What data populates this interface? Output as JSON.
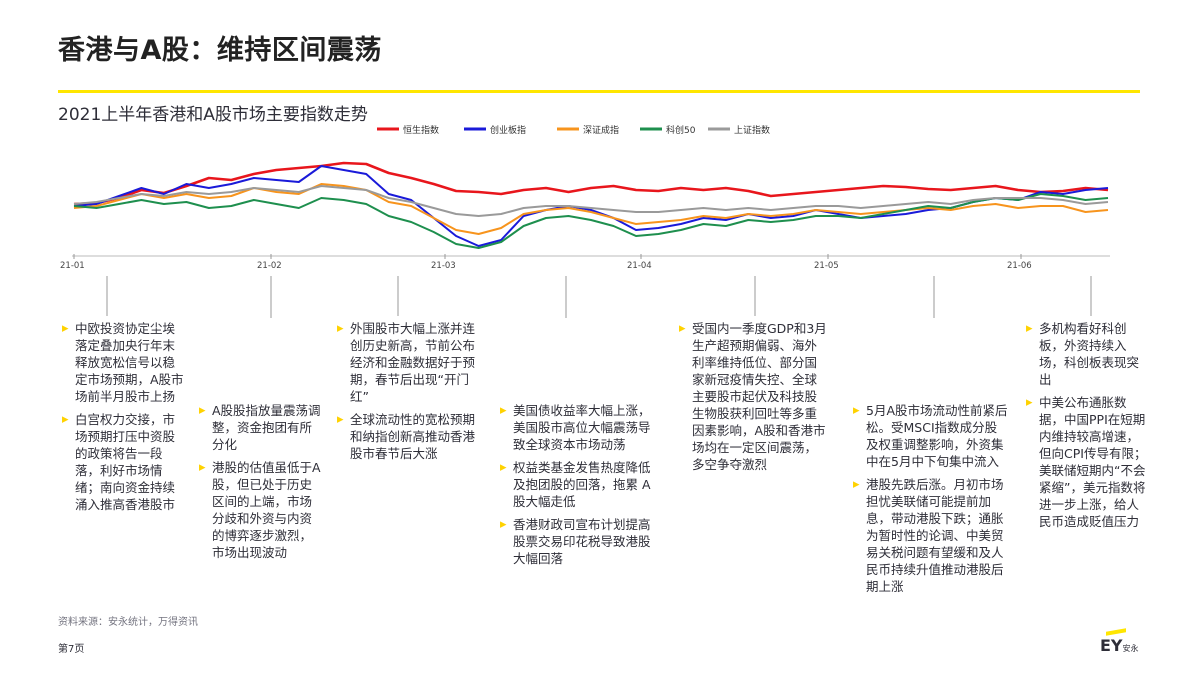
{
  "header": {
    "title": "香港与A股：维持区间震荡",
    "subtitle": "2021上半年香港和A股市场主要指数走势"
  },
  "chart_data": {
    "type": "line",
    "x": [
      "21-01",
      "21-02",
      "21-03",
      "21-04",
      "21-05",
      "21-06"
    ],
    "series": [
      {
        "name": "恒生指数",
        "color": "#e8161c"
      },
      {
        "name": "创业板指",
        "color": "#1a1ad9"
      },
      {
        "name": "深证成指",
        "color": "#f7941d"
      },
      {
        "name": "科创50",
        "color": "#1e8f4e"
      },
      {
        "name": "上证指数",
        "color": "#9a9a9a"
      }
    ],
    "legend": "top-center"
  },
  "notes": [
    {
      "items": [
        "中欧投资协定尘埃落定叠加央行年末释放宽松信号以稳定市场预期，A股市场前半月股市上扬",
        "白宫权力交接，市场预期打压中资股的政策将告一段落，利好市场情绪；南向资金持续涌入推高香港股市"
      ]
    },
    {
      "items": [
        "A股股指放量震荡调整，资金抱团有所分化",
        "港股的估值虽低于A股，但已处于历史区间的上端，市场分歧和外资与内资的博弈逐步激烈，市场出现波动"
      ]
    },
    {
      "items": [
        "外围股市大幅上涨并连创历史新高，节前公布经济和金融数据好于预期，春节后出现“开门红”",
        "全球流动性的宽松预期和纳指创新高推动香港股市春节后大涨"
      ]
    },
    {
      "items": [
        "美国债收益率大幅上涨，美国股市高位大幅震荡导致全球资本市场动荡",
        "权益类基金发售热度降低及抱团股的回落，拖累 A 股大幅走低",
        "香港财政司宣布计划提高股票交易印花税导致港股大幅回落"
      ]
    },
    {
      "items": [
        "受国内一季度GDP和3月生产超预期偏弱、海外利率维持低位、部分国家新冠疫情失控、全球主要股市起伏及科技股生物股获利回吐等多重因素影响，A股和香港市场均在一定区间震荡，多空争夺激烈"
      ]
    },
    {
      "items": [
        "5月A股市场流动性前紧后松。受MSCI指数成分股及权重调整影响，外资集中在5月中下旬集中流入",
        "港股先跌后涨。月初市场担忧美联储可能提前加息，带动港股下跌；通胀为暂时性的论调、中美贸易关税问题有望缓和及人民币持续升值推动港股后期上涨"
      ]
    },
    {
      "items": [
        "多机构看好科创板，外资持续入场，科创板表现突出",
        "中美公布通胀数据，中国PPI在短期内维持较高增速，但向CPI传导有限；美联储短期内“不会紧缩”，美元指数将进一步上涨，给人民币造成贬值压力"
      ]
    }
  ],
  "footer": {
    "source": "资料来源：安永统计，万得资讯",
    "page": "第7页",
    "logo": "EY",
    "logo_sub": "安永"
  }
}
